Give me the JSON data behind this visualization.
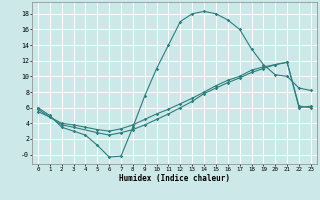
{
  "xlabel": "Humidex (Indice chaleur)",
  "bg_color": "#cce8e8",
  "grid_color": "#ffffff",
  "line_color": "#2d7d7d",
  "xlim": [
    -0.5,
    23.5
  ],
  "ylim": [
    -1.2,
    19.5
  ],
  "xticks": [
    0,
    1,
    2,
    3,
    4,
    5,
    6,
    7,
    8,
    9,
    10,
    11,
    12,
    13,
    14,
    15,
    16,
    17,
    18,
    19,
    20,
    21,
    22,
    23
  ],
  "yticks": [
    0,
    2,
    4,
    6,
    8,
    10,
    12,
    14,
    16,
    18
  ],
  "ytick_labels": [
    "-0",
    "2",
    "4",
    "6",
    "8",
    "10",
    "12",
    "14",
    "16",
    "18"
  ],
  "curve1_x": [
    0,
    1,
    2,
    3,
    4,
    5,
    6,
    7,
    8,
    9,
    10,
    11,
    12,
    13,
    14,
    15,
    16,
    17,
    18,
    19,
    20,
    21,
    22,
    23
  ],
  "curve1_y": [
    6.0,
    5.0,
    3.5,
    3.0,
    2.5,
    1.2,
    -0.3,
    -0.2,
    3.5,
    7.5,
    11.0,
    14.0,
    17.0,
    18.0,
    18.3,
    18.0,
    17.2,
    16.0,
    13.5,
    11.5,
    10.2,
    10.0,
    8.5,
    8.2
  ],
  "curve2_x": [
    0,
    2,
    3,
    5,
    6,
    7,
    8,
    9,
    10,
    11,
    12,
    13,
    14,
    15,
    16,
    17,
    18,
    19,
    20,
    21,
    22,
    23
  ],
  "curve2_y": [
    5.8,
    3.8,
    3.5,
    2.8,
    2.5,
    2.8,
    3.2,
    3.8,
    4.5,
    5.2,
    6.0,
    6.8,
    7.8,
    8.5,
    9.2,
    9.8,
    10.5,
    11.0,
    11.5,
    11.8,
    6.2,
    6.0
  ],
  "curve3_x": [
    0,
    1,
    2,
    3,
    4,
    5,
    6,
    7,
    8,
    9,
    10,
    11,
    12,
    13,
    14,
    15,
    16,
    17,
    18,
    19,
    20,
    21,
    22,
    23
  ],
  "curve3_y": [
    5.5,
    4.8,
    4.0,
    3.8,
    3.5,
    3.2,
    3.0,
    3.3,
    3.8,
    4.5,
    5.2,
    5.8,
    6.5,
    7.2,
    8.0,
    8.8,
    9.5,
    10.0,
    10.8,
    11.2,
    11.5,
    11.8,
    6.0,
    6.2
  ]
}
